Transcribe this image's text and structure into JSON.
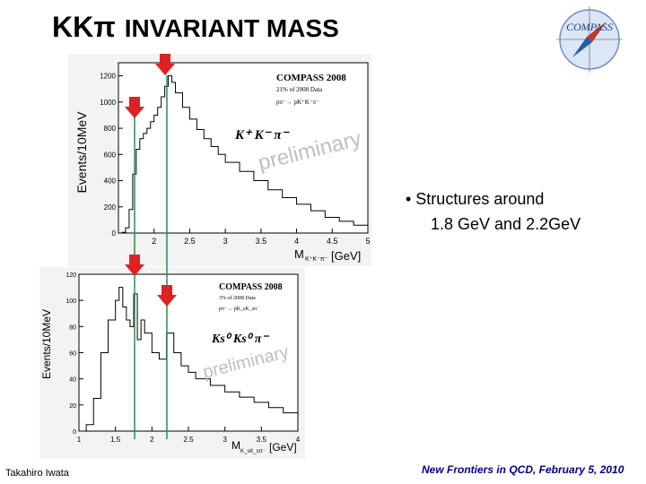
{
  "slide": {
    "title_main": "KKπ",
    "title_sub": "INVARIANT MASS",
    "logo_text": "COMPASS",
    "bullet_line1": "• Structures  around",
    "bullet_line2": "1.8 GeV and  2.2GeV",
    "author": "Takahiro Iwata",
    "footer": "New Frontiers in QCD,  February 5, 2010",
    "arrow_color": "#dd2222",
    "guide_line_color": "#2e8b57"
  },
  "chart_data": [
    {
      "type": "line",
      "header": "COMPASS 2008",
      "subheader": "21% of 2008 Data",
      "reaction": "pπ⁻→ pK⁺K⁻π⁻",
      "channel_label": "K⁺ K⁻ π⁻",
      "watermark": "preliminary",
      "ylabel": "Events/10MeV",
      "xlabel": "M",
      "xlabel_sub": "K⁺K⁻π⁻",
      "xlabel_unit": "[GeV]",
      "xlim": [
        1.5,
        5
      ],
      "ylim": [
        0,
        1300
      ],
      "x_ticks": [
        "2",
        "2.5",
        "3",
        "3.5",
        "4",
        "4.5",
        "5"
      ],
      "y_ticks": [
        "0",
        "200",
        "400",
        "600",
        "800",
        "1000",
        "1200"
      ],
      "x": [
        1.5,
        1.55,
        1.6,
        1.65,
        1.7,
        1.75,
        1.8,
        1.85,
        1.9,
        1.95,
        2.0,
        2.05,
        2.1,
        2.15,
        2.2,
        2.25,
        2.3,
        2.4,
        2.5,
        2.6,
        2.7,
        2.8,
        2.9,
        3.0,
        3.2,
        3.4,
        3.6,
        3.8,
        4.0,
        4.2,
        4.4,
        4.6,
        4.8,
        5.0
      ],
      "y": [
        0,
        5,
        40,
        180,
        450,
        640,
        720,
        760,
        800,
        850,
        900,
        960,
        1040,
        1120,
        1200,
        1150,
        1070,
        960,
        870,
        790,
        720,
        660,
        600,
        540,
        470,
        400,
        330,
        270,
        220,
        170,
        120,
        90,
        60,
        30
      ]
    },
    {
      "type": "line",
      "header": "COMPASS 2008",
      "subheader": "3% of 2008 Data",
      "reaction": "pπ⁻→ pK_sK_sπ⁻",
      "channel_label": "Ks⁰ Ks⁰ π⁻",
      "watermark": "preliminary",
      "ylabel": "Events/10MeV",
      "xlabel": "M",
      "xlabel_sub": "K_sK_sπ⁻",
      "xlabel_unit": "[GeV]",
      "xlim": [
        1,
        4
      ],
      "ylim": [
        0,
        120
      ],
      "x_ticks": [
        "1",
        "1.5",
        "2",
        "2.5",
        "3",
        "3.5",
        "4"
      ],
      "y_ticks": [
        "0",
        "20",
        "40",
        "60",
        "80",
        "100",
        "120"
      ],
      "x": [
        1.0,
        1.1,
        1.2,
        1.3,
        1.4,
        1.5,
        1.55,
        1.6,
        1.65,
        1.7,
        1.75,
        1.8,
        1.85,
        1.9,
        2.0,
        2.1,
        2.2,
        2.3,
        2.4,
        2.5,
        2.6,
        2.8,
        3.0,
        3.2,
        3.4,
        3.6,
        3.8,
        4.0
      ],
      "y": [
        0,
        5,
        25,
        60,
        85,
        100,
        110,
        95,
        85,
        80,
        105,
        70,
        85,
        75,
        60,
        55,
        75,
        60,
        50,
        45,
        40,
        35,
        30,
        26,
        22,
        18,
        14,
        10
      ]
    }
  ]
}
